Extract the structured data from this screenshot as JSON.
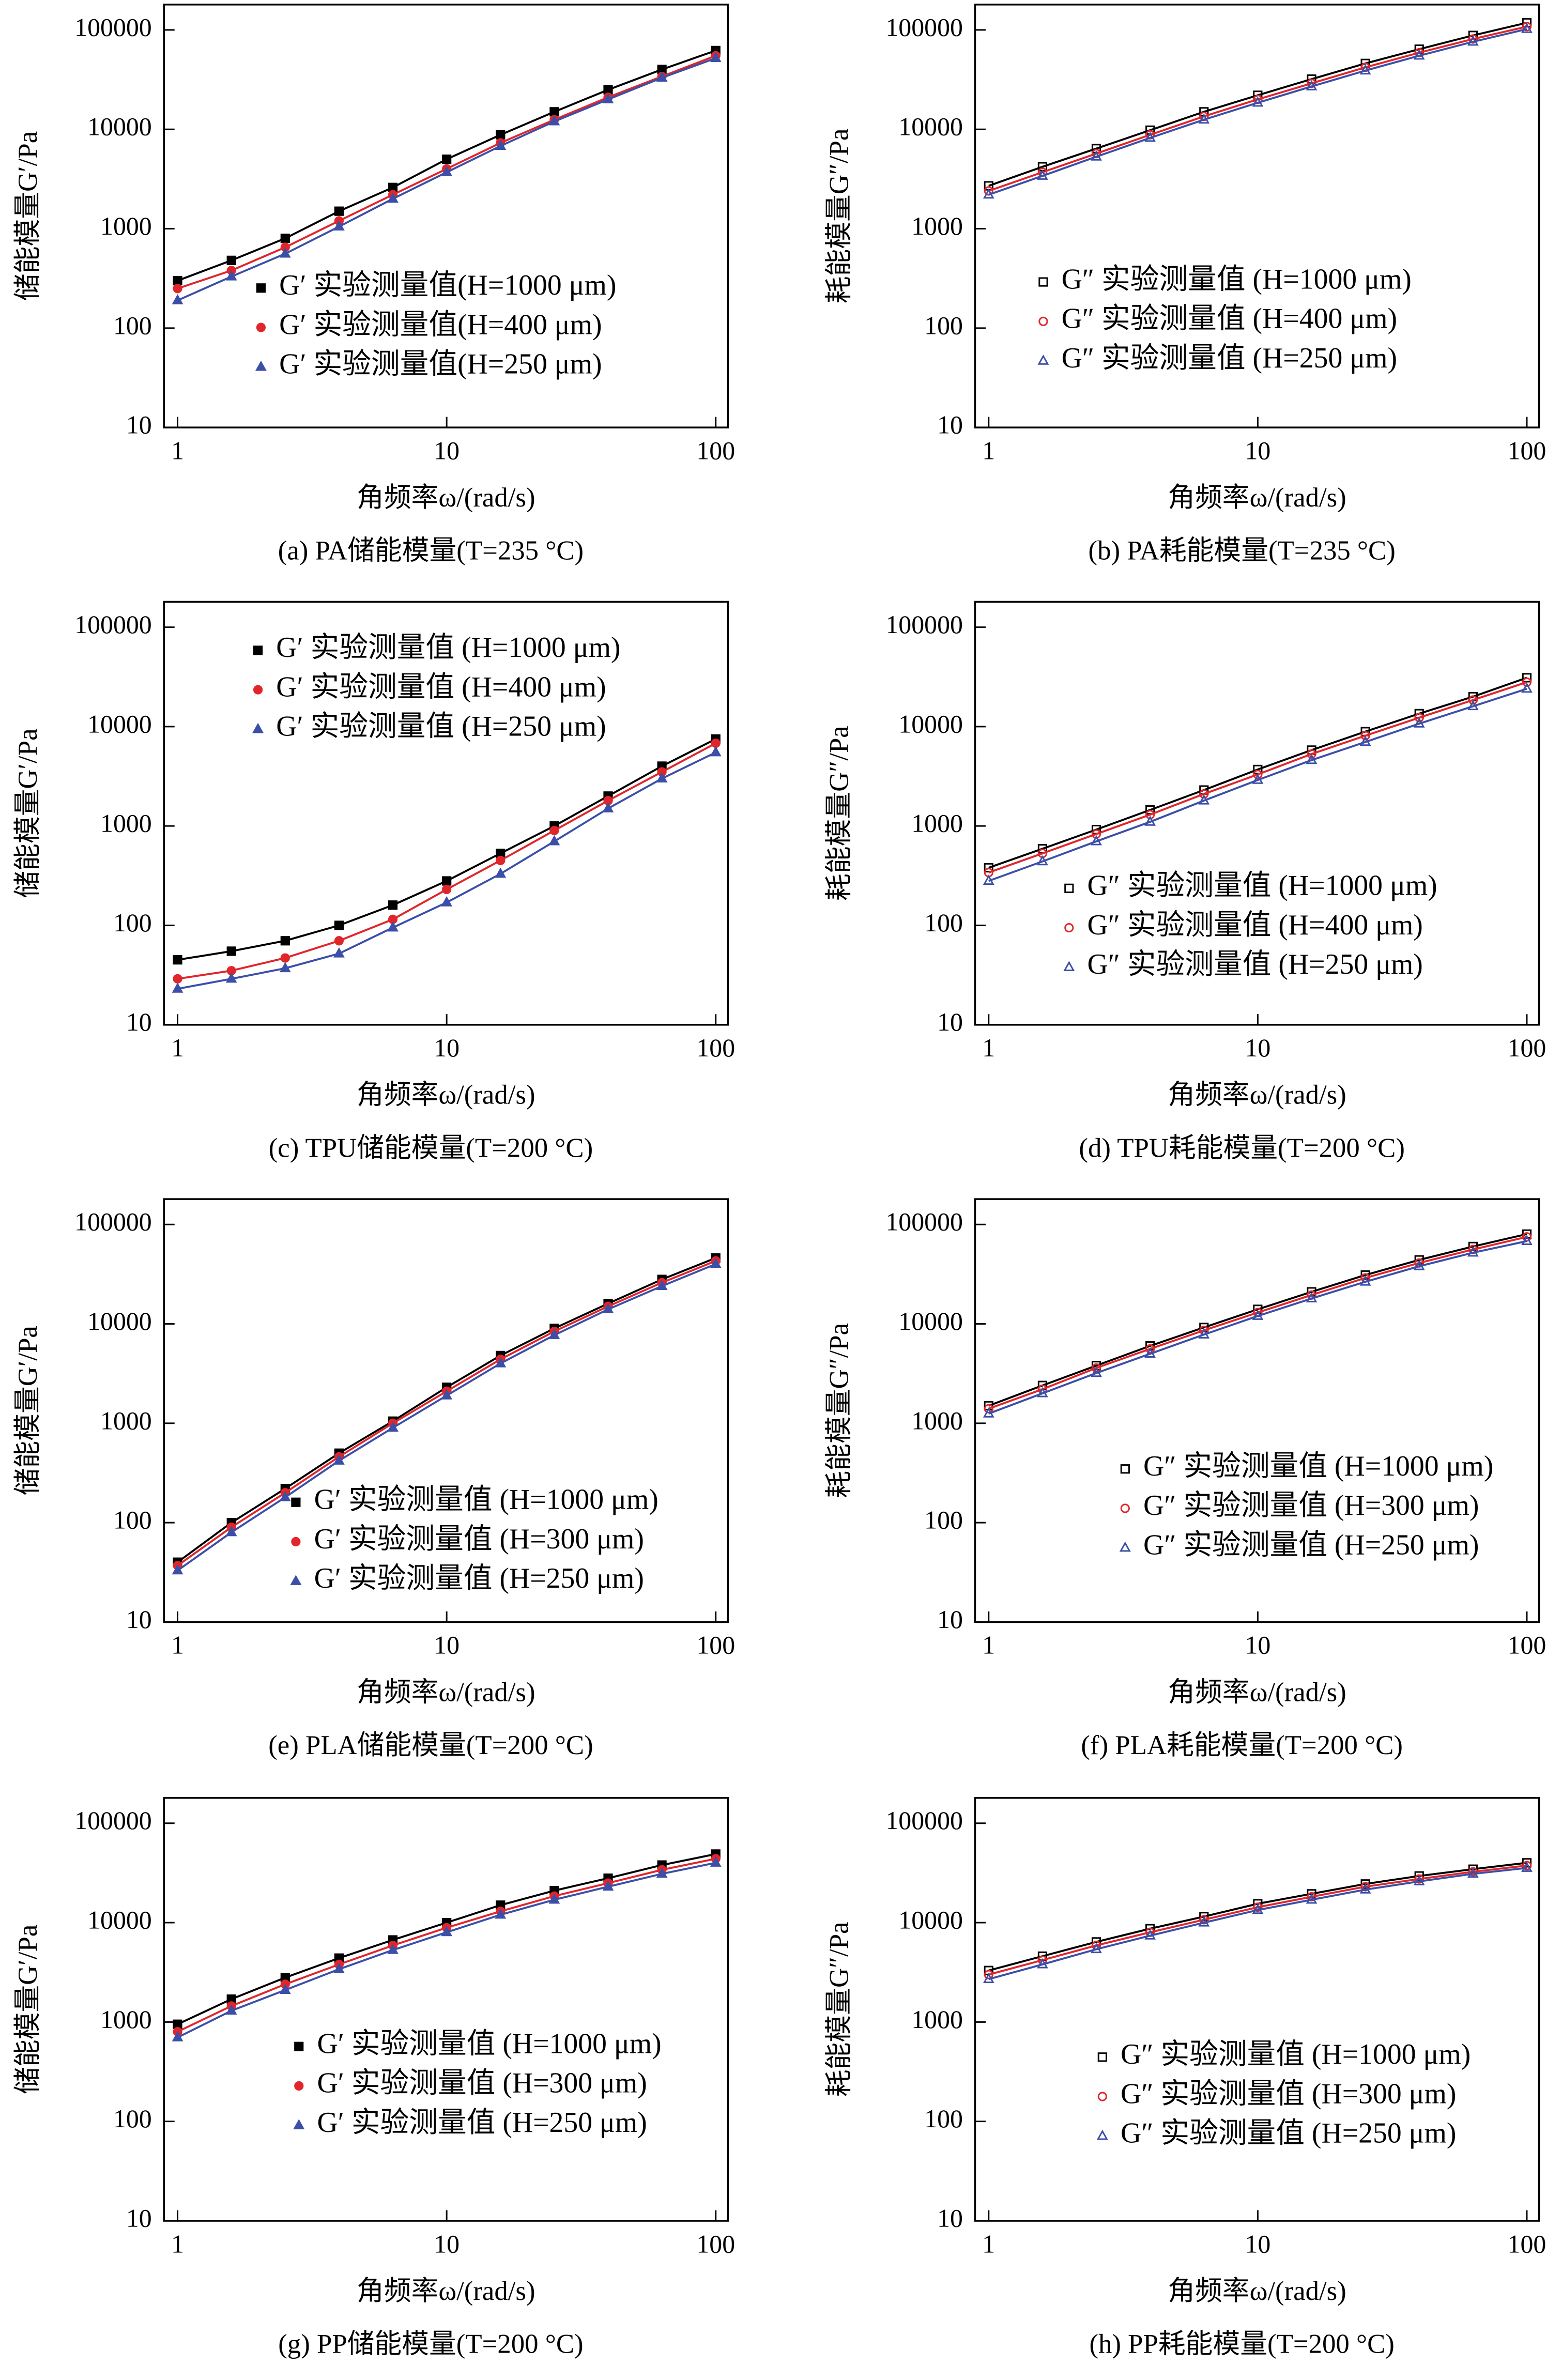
{
  "chart_data": [
    {
      "type": "scatter",
      "caption": "(a)  PA储能模量(T=235 °C)",
      "xlabel": "角频率ω/(rad/s)",
      "ylabel": "储能模量G′/Pa",
      "xlog": true,
      "ylog": true,
      "x": [
        1,
        1.585,
        2.512,
        3.981,
        6.31,
        10,
        15.85,
        25.12,
        39.81,
        63.1,
        100
      ],
      "xlim": [
        0.89,
        111
      ],
      "ylim": [
        10,
        180000
      ],
      "xticks": [
        1,
        10,
        100
      ],
      "yticks": [
        10,
        100,
        1000,
        10000,
        100000
      ],
      "series": [
        {
          "name": "G′ 实验测量值(H=1000 μm)",
          "color": "#000000",
          "marker": "square",
          "filled": true,
          "values": [
            300,
            480,
            800,
            1500,
            2600,
            5000,
            8800,
            15000,
            25000,
            40000,
            62000
          ]
        },
        {
          "name": "G′ 实验测量值(H=400 μm)",
          "color": "#e0262b",
          "marker": "circle",
          "filled": true,
          "values": [
            250,
            380,
            650,
            1200,
            2200,
            4000,
            7300,
            12500,
            21000,
            34000,
            55000
          ]
        },
        {
          "name": "G′ 实验测量值(H=250 μm)",
          "color": "#3b4fa8",
          "marker": "triangle",
          "filled": true,
          "values": [
            190,
            330,
            560,
            1050,
            2000,
            3700,
            6800,
            12000,
            20000,
            33000,
            52000
          ]
        }
      ]
    },
    {
      "type": "scatter",
      "caption": "(b)  PA耗能模量(T=235 °C)",
      "xlabel": "角频率ω/(rad/s)",
      "ylabel": "耗能模量G″/Pa",
      "xlog": true,
      "ylog": true,
      "x": [
        1,
        1.585,
        2.512,
        3.981,
        6.31,
        10,
        15.85,
        25.12,
        39.81,
        63.1,
        100
      ],
      "xlim": [
        0.89,
        111
      ],
      "ylim": [
        10,
        180000
      ],
      "xticks": [
        1,
        10,
        100
      ],
      "yticks": [
        10,
        100,
        1000,
        10000,
        100000
      ],
      "series": [
        {
          "name": "G″ 实验测量值 (H=1000 μm)",
          "color": "#000000",
          "marker": "square",
          "filled": false,
          "values": [
            2700,
            4200,
            6400,
            9800,
            15000,
            22000,
            32000,
            46000,
            64000,
            88000,
            118000
          ]
        },
        {
          "name": "G″ 实验测量值 (H=400 μm)",
          "color": "#e0262b",
          "marker": "circle",
          "filled": false,
          "values": [
            2400,
            3700,
            5700,
            8800,
            13500,
            20000,
            29000,
            42000,
            59000,
            81000,
            108000
          ]
        },
        {
          "name": "G″ 实验测量值 (H=250 μm)",
          "color": "#3b4fa8",
          "marker": "triangle",
          "filled": false,
          "values": [
            2200,
            3400,
            5300,
            8200,
            12500,
            18500,
            27000,
            39000,
            55000,
            76000,
            102000
          ]
        }
      ]
    },
    {
      "type": "scatter",
      "caption": "(c)  TPU储能模量(T=200 °C)",
      "xlabel": "角频率ω/(rad/s)",
      "ylabel": "储能模量G′/Pa",
      "xlog": true,
      "ylog": true,
      "x": [
        1,
        1.585,
        2.512,
        3.981,
        6.31,
        10,
        15.85,
        25.12,
        39.81,
        63.1,
        100
      ],
      "xlim": [
        0.89,
        111
      ],
      "ylim": [
        10,
        180000
      ],
      "xticks": [
        1,
        10,
        100
      ],
      "yticks": [
        10,
        100,
        1000,
        10000,
        100000
      ],
      "series": [
        {
          "name": "G′ 实验测量值 (H=1000 μm)",
          "color": "#000000",
          "marker": "square",
          "filled": true,
          "values": [
            45,
            55,
            70,
            100,
            160,
            280,
            530,
            1000,
            2000,
            4000,
            7500
          ]
        },
        {
          "name": "G′ 实验测量值 (H=400 μm)",
          "color": "#e0262b",
          "marker": "circle",
          "filled": true,
          "values": [
            29,
            35,
            47,
            70,
            115,
            230,
            450,
            900,
            1800,
            3500,
            6800
          ]
        },
        {
          "name": "G′ 实验测量值 (H=250 μm)",
          "color": "#3b4fa8",
          "marker": "triangle",
          "filled": true,
          "values": [
            23,
            29,
            37,
            52,
            95,
            170,
            330,
            700,
            1500,
            3000,
            5500
          ]
        }
      ]
    },
    {
      "type": "scatter",
      "caption": "(d)  TPU耗能模量(T=200 °C)",
      "xlabel": "角频率ω/(rad/s)",
      "ylabel": "耗能模量G″/Pa",
      "xlog": true,
      "ylog": true,
      "x": [
        1,
        1.585,
        2.512,
        3.981,
        6.31,
        10,
        15.85,
        25.12,
        39.81,
        63.1,
        100
      ],
      "xlim": [
        0.89,
        111
      ],
      "ylim": [
        10,
        180000
      ],
      "xticks": [
        1,
        10,
        100
      ],
      "yticks": [
        10,
        100,
        1000,
        10000,
        100000
      ],
      "series": [
        {
          "name": "G″ 实验测量值 (H=1000 μm)",
          "color": "#000000",
          "marker": "square",
          "filled": false,
          "values": [
            380,
            590,
            920,
            1450,
            2300,
            3700,
            5800,
            8900,
            13500,
            20000,
            31000
          ]
        },
        {
          "name": "G″ 实验测量值 (H=400 μm)",
          "color": "#e0262b",
          "marker": "circle",
          "filled": false,
          "values": [
            340,
            530,
            830,
            1300,
            2100,
            3300,
            5300,
            8100,
            12300,
            18500,
            28000
          ]
        },
        {
          "name": "G″ 实验测量值 (H=250 μm)",
          "color": "#3b4fa8",
          "marker": "triangle",
          "filled": false,
          "values": [
            280,
            440,
            700,
            1100,
            1800,
            2900,
            4600,
            7000,
            10700,
            16000,
            24000
          ]
        }
      ]
    },
    {
      "type": "scatter",
      "caption": "(e)  PLA储能模量(T=200 °C)",
      "xlabel": "角频率ω/(rad/s)",
      "ylabel": "储能模量G′/Pa",
      "xlog": true,
      "ylog": true,
      "x": [
        1,
        1.585,
        2.512,
        3.981,
        6.31,
        10,
        15.85,
        25.12,
        39.81,
        63.1,
        100
      ],
      "xlim": [
        0.89,
        111
      ],
      "ylim": [
        10,
        180000
      ],
      "xticks": [
        1,
        10,
        100
      ],
      "yticks": [
        10,
        100,
        1000,
        10000,
        100000
      ],
      "series": [
        {
          "name": "G′ 实验测量值 (H=1000 μm)",
          "color": "#000000",
          "marker": "square",
          "filled": true,
          "values": [
            40,
            100,
            220,
            500,
            1050,
            2300,
            4800,
            9000,
            16000,
            28000,
            46000
          ]
        },
        {
          "name": "G′ 实验测量值 (H=300 μm)",
          "color": "#e0262b",
          "marker": "circle",
          "filled": true,
          "values": [
            37,
            90,
            200,
            460,
            1000,
            2100,
            4400,
            8400,
            15000,
            26000,
            43000
          ]
        },
        {
          "name": "G′ 实验测量值 (H=250 μm)",
          "color": "#3b4fa8",
          "marker": "triangle",
          "filled": true,
          "values": [
            33,
            80,
            180,
            420,
            900,
            1900,
            4000,
            7700,
            14000,
            24000,
            40000
          ]
        }
      ]
    },
    {
      "type": "scatter",
      "caption": "(f)  PLA耗能模量(T=200 °C)",
      "xlabel": "角频率ω/(rad/s)",
      "ylabel": "耗能模量G″/Pa",
      "xlog": true,
      "ylog": true,
      "x": [
        1,
        1.585,
        2.512,
        3.981,
        6.31,
        10,
        15.85,
        25.12,
        39.81,
        63.1,
        100
      ],
      "xlim": [
        0.89,
        111
      ],
      "ylim": [
        10,
        180000
      ],
      "xticks": [
        1,
        10,
        100
      ],
      "yticks": [
        10,
        100,
        1000,
        10000,
        100000
      ],
      "series": [
        {
          "name": "G″ 实验测量值 (H=1000 μm)",
          "color": "#000000",
          "marker": "square",
          "filled": false,
          "values": [
            1500,
            2400,
            3800,
            6000,
            9200,
            14000,
            21000,
            31000,
            44000,
            60000,
            80000
          ]
        },
        {
          "name": "G″ 实验测量值 (H=300 μm)",
          "color": "#e0262b",
          "marker": "circle",
          "filled": false,
          "values": [
            1400,
            2200,
            3600,
            5600,
            8600,
            13000,
            19500,
            29000,
            41000,
            56000,
            75000
          ]
        },
        {
          "name": "G″ 实验测量值 (H=250 μm)",
          "color": "#3b4fa8",
          "marker": "triangle",
          "filled": false,
          "values": [
            1250,
            2000,
            3200,
            5000,
            7800,
            12000,
            18000,
            26500,
            38000,
            52000,
            68000
          ]
        }
      ]
    },
    {
      "type": "scatter",
      "caption": "(g)  PP储能模量(T=200 °C)",
      "xlabel": "角频率ω/(rad/s)",
      "ylabel": "储能模量G′/Pa",
      "xlog": true,
      "ylog": true,
      "x": [
        1,
        1.585,
        2.512,
        3.981,
        6.31,
        10,
        15.85,
        25.12,
        39.81,
        63.1,
        100
      ],
      "xlim": [
        0.89,
        111
      ],
      "ylim": [
        10,
        180000
      ],
      "xticks": [
        1,
        10,
        100
      ],
      "yticks": [
        10,
        100,
        1000,
        10000,
        100000
      ],
      "series": [
        {
          "name": "G′ 实验测量值 (H=1000 μm)",
          "color": "#000000",
          "marker": "square",
          "filled": true,
          "values": [
            950,
            1700,
            2800,
            4400,
            6700,
            10000,
            15000,
            21000,
            28000,
            38000,
            49000
          ]
        },
        {
          "name": "G′ 实验测量值 (H=300 μm)",
          "color": "#e0262b",
          "marker": "circle",
          "filled": true,
          "values": [
            800,
            1450,
            2400,
            3800,
            5900,
            8900,
            13000,
            18500,
            25000,
            34000,
            44000
          ]
        },
        {
          "name": "G′ 实验测量值 (H=250 μm)",
          "color": "#3b4fa8",
          "marker": "triangle",
          "filled": true,
          "values": [
            700,
            1300,
            2100,
            3400,
            5300,
            8000,
            12000,
            17000,
            23000,
            31000,
            40000
          ]
        }
      ]
    },
    {
      "type": "scatter",
      "caption": "(h)  PP耗能模量(T=200 °C)",
      "xlabel": "角频率ω/(rad/s)",
      "ylabel": "耗能模量G″/Pa",
      "xlog": true,
      "ylog": true,
      "x": [
        1,
        1.585,
        2.512,
        3.981,
        6.31,
        10,
        15.85,
        25.12,
        39.81,
        63.1,
        100
      ],
      "xlim": [
        0.89,
        111
      ],
      "ylim": [
        10,
        180000
      ],
      "xticks": [
        1,
        10,
        100
      ],
      "yticks": [
        10,
        100,
        1000,
        10000,
        100000
      ],
      "series": [
        {
          "name": "G″ 实验测量值 (H=1000 μm)",
          "color": "#000000",
          "marker": "square",
          "filled": false,
          "values": [
            3300,
            4600,
            6400,
            8700,
            11500,
            15500,
            19500,
            24500,
            29500,
            34500,
            40000
          ]
        },
        {
          "name": "G″ 实验测量值 (H=300 μm)",
          "color": "#e0262b",
          "marker": "circle",
          "filled": false,
          "values": [
            3000,
            4200,
            5900,
            8000,
            10700,
            14300,
            18200,
            23000,
            27500,
            32500,
            37500
          ]
        },
        {
          "name": "G″ 实验测量值 (H=250 μm)",
          "color": "#3b4fa8",
          "marker": "triangle",
          "filled": false,
          "values": [
            2700,
            3800,
            5400,
            7400,
            10000,
            13400,
            17000,
            21500,
            26000,
            31000,
            35500
          ]
        }
      ]
    }
  ]
}
